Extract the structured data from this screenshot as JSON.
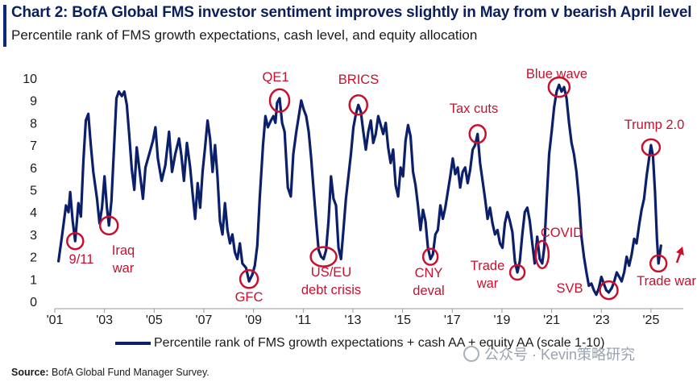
{
  "header": {
    "title": "Chart 2: BofA Global FMS investor sentiment improves slightly in May from v bearish April level",
    "subtitle": "Percentile rank of FMS growth expectations, cash level, and equity allocation"
  },
  "source": {
    "label": "Source:",
    "text": "BofA Global Fund Manager Survey."
  },
  "watermark": "公众号 · Kevin策略研究",
  "colors": {
    "line": "#0b1f6b",
    "annotation": "#c8102e",
    "title": "#0b1f5c"
  },
  "chart_data": {
    "type": "line",
    "title": "Chart 2: BofA Global FMS investor sentiment improves slightly in May from v bearish April level",
    "subtitle": "Percentile rank of FMS growth expectations, cash level, and equity allocation",
    "ylim": [
      0,
      10
    ],
    "yticks": [
      "0",
      "1",
      "2",
      "3",
      "4",
      "5",
      "6",
      "7",
      "8",
      "9",
      "10"
    ],
    "xlim": [
      2001,
      2026.3
    ],
    "xticks": [
      {
        "x": 2001,
        "label": "'01"
      },
      {
        "x": 2003,
        "label": "'03"
      },
      {
        "x": 2005,
        "label": "'05"
      },
      {
        "x": 2007,
        "label": "'07"
      },
      {
        "x": 2009,
        "label": "'09"
      },
      {
        "x": 2011,
        "label": "'11"
      },
      {
        "x": 2013,
        "label": "'13"
      },
      {
        "x": 2015,
        "label": "'15"
      },
      {
        "x": 2017,
        "label": "'17"
      },
      {
        "x": 2019,
        "label": "'19"
      },
      {
        "x": 2021,
        "label": "'21"
      },
      {
        "x": 2023,
        "label": "'23"
      },
      {
        "x": 2025,
        "label": "'25"
      }
    ],
    "grid": false,
    "legend_position": "bottom",
    "series": [
      {
        "name": "Percentile rank of FMS growth expectations + cash AA + equity AA (scale 1-10)",
        "points": [
          [
            2001.15,
            1.8
          ],
          [
            2001.3,
            3.0
          ],
          [
            2001.45,
            4.3
          ],
          [
            2001.55,
            4.0
          ],
          [
            2001.62,
            4.9
          ],
          [
            2001.72,
            3.6
          ],
          [
            2001.82,
            2.7
          ],
          [
            2001.95,
            4.4
          ],
          [
            2002.05,
            3.8
          ],
          [
            2002.15,
            6.3
          ],
          [
            2002.25,
            8.1
          ],
          [
            2002.35,
            8.4
          ],
          [
            2002.45,
            7.0
          ],
          [
            2002.55,
            5.8
          ],
          [
            2002.7,
            4.6
          ],
          [
            2002.8,
            3.5
          ],
          [
            2002.9,
            4.2
          ],
          [
            2003.0,
            5.6
          ],
          [
            2003.1,
            4.2
          ],
          [
            2003.18,
            3.4
          ],
          [
            2003.28,
            4.5
          ],
          [
            2003.38,
            6.8
          ],
          [
            2003.48,
            9.1
          ],
          [
            2003.58,
            9.4
          ],
          [
            2003.7,
            9.2
          ],
          [
            2003.8,
            9.4
          ],
          [
            2003.9,
            8.8
          ],
          [
            2004.0,
            7.4
          ],
          [
            2004.1,
            5.9
          ],
          [
            2004.2,
            5.0
          ],
          [
            2004.3,
            6.9
          ],
          [
            2004.42,
            5.8
          ],
          [
            2004.55,
            4.6
          ],
          [
            2004.65,
            6.0
          ],
          [
            2004.8,
            6.6
          ],
          [
            2004.95,
            7.2
          ],
          [
            2005.05,
            7.8
          ],
          [
            2005.15,
            6.4
          ],
          [
            2005.3,
            5.4
          ],
          [
            2005.45,
            6.1
          ],
          [
            2005.6,
            7.6
          ],
          [
            2005.72,
            5.8
          ],
          [
            2005.85,
            6.6
          ],
          [
            2006.0,
            7.3
          ],
          [
            2006.1,
            6.5
          ],
          [
            2006.2,
            5.4
          ],
          [
            2006.32,
            7.1
          ],
          [
            2006.45,
            6.0
          ],
          [
            2006.55,
            4.8
          ],
          [
            2006.65,
            3.7
          ],
          [
            2006.75,
            5.3
          ],
          [
            2006.85,
            4.2
          ],
          [
            2006.95,
            5.8
          ],
          [
            2007.05,
            6.9
          ],
          [
            2007.15,
            8.1
          ],
          [
            2007.25,
            7.3
          ],
          [
            2007.35,
            5.8
          ],
          [
            2007.45,
            7.0
          ],
          [
            2007.55,
            5.6
          ],
          [
            2007.65,
            3.6
          ],
          [
            2007.75,
            3.0
          ],
          [
            2007.85,
            4.4
          ],
          [
            2007.95,
            3.2
          ],
          [
            2008.05,
            2.6
          ],
          [
            2008.15,
            3.0
          ],
          [
            2008.25,
            2.2
          ],
          [
            2008.35,
            1.9
          ],
          [
            2008.45,
            2.6
          ],
          [
            2008.55,
            1.7
          ],
          [
            2008.7,
            1.5
          ],
          [
            2008.82,
            0.9
          ],
          [
            2008.95,
            1.2
          ],
          [
            2009.05,
            1.6
          ],
          [
            2009.15,
            2.5
          ],
          [
            2009.25,
            4.6
          ],
          [
            2009.38,
            7.0
          ],
          [
            2009.48,
            8.3
          ],
          [
            2009.58,
            7.8
          ],
          [
            2009.7,
            8.1
          ],
          [
            2009.8,
            8.3
          ],
          [
            2009.88,
            8.0
          ],
          [
            2009.95,
            8.9
          ],
          [
            2010.05,
            9.1
          ],
          [
            2010.15,
            8.0
          ],
          [
            2010.25,
            7.6
          ],
          [
            2010.38,
            5.1
          ],
          [
            2010.5,
            4.7
          ],
          [
            2010.6,
            6.6
          ],
          [
            2010.72,
            7.6
          ],
          [
            2010.82,
            8.3
          ],
          [
            2010.92,
            9.0
          ],
          [
            2011.02,
            8.6
          ],
          [
            2011.12,
            8.3
          ],
          [
            2011.22,
            7.6
          ],
          [
            2011.32,
            6.4
          ],
          [
            2011.42,
            5.0
          ],
          [
            2011.52,
            3.6
          ],
          [
            2011.62,
            2.3
          ],
          [
            2011.72,
            2.0
          ],
          [
            2011.82,
            1.9
          ],
          [
            2011.92,
            2.3
          ],
          [
            2012.02,
            3.6
          ],
          [
            2012.12,
            5.6
          ],
          [
            2012.22,
            4.6
          ],
          [
            2012.32,
            4.3
          ],
          [
            2012.42,
            2.4
          ],
          [
            2012.52,
            1.9
          ],
          [
            2012.62,
            3.2
          ],
          [
            2012.72,
            4.6
          ],
          [
            2012.82,
            5.6
          ],
          [
            2012.92,
            6.6
          ],
          [
            2013.02,
            7.8
          ],
          [
            2013.12,
            8.4
          ],
          [
            2013.22,
            8.8
          ],
          [
            2013.32,
            8.5
          ],
          [
            2013.42,
            7.6
          ],
          [
            2013.52,
            6.8
          ],
          [
            2013.62,
            7.6
          ],
          [
            2013.72,
            8.1
          ],
          [
            2013.82,
            7.1
          ],
          [
            2013.92,
            7.5
          ],
          [
            2014.02,
            8.3
          ],
          [
            2014.12,
            7.9
          ],
          [
            2014.22,
            7.5
          ],
          [
            2014.32,
            8.0
          ],
          [
            2014.42,
            6.9
          ],
          [
            2014.52,
            6.2
          ],
          [
            2014.62,
            6.8
          ],
          [
            2014.72,
            5.2
          ],
          [
            2014.82,
            4.7
          ],
          [
            2014.92,
            6.0
          ],
          [
            2015.02,
            5.6
          ],
          [
            2015.12,
            7.2
          ],
          [
            2015.22,
            7.9
          ],
          [
            2015.32,
            7.4
          ],
          [
            2015.42,
            5.8
          ],
          [
            2015.52,
            5.2
          ],
          [
            2015.62,
            4.3
          ],
          [
            2015.72,
            3.2
          ],
          [
            2015.82,
            4.1
          ],
          [
            2015.92,
            3.6
          ],
          [
            2016.02,
            2.4
          ],
          [
            2016.12,
            1.9
          ],
          [
            2016.22,
            2.1
          ],
          [
            2016.32,
            3.0
          ],
          [
            2016.42,
            3.2
          ],
          [
            2016.52,
            4.3
          ],
          [
            2016.62,
            3.7
          ],
          [
            2016.72,
            4.2
          ],
          [
            2016.82,
            4.9
          ],
          [
            2016.92,
            5.6
          ],
          [
            2017.02,
            6.4
          ],
          [
            2017.12,
            5.7
          ],
          [
            2017.22,
            6.0
          ],
          [
            2017.32,
            5.1
          ],
          [
            2017.42,
            5.8
          ],
          [
            2017.52,
            6.0
          ],
          [
            2017.62,
            5.3
          ],
          [
            2017.72,
            5.9
          ],
          [
            2017.82,
            6.8
          ],
          [
            2017.92,
            7.0
          ],
          [
            2018.02,
            7.5
          ],
          [
            2018.12,
            6.2
          ],
          [
            2018.22,
            5.4
          ],
          [
            2018.32,
            4.6
          ],
          [
            2018.42,
            3.7
          ],
          [
            2018.52,
            4.2
          ],
          [
            2018.62,
            3.5
          ],
          [
            2018.72,
            3.0
          ],
          [
            2018.82,
            3.2
          ],
          [
            2018.92,
            2.6
          ],
          [
            2019.02,
            2.4
          ],
          [
            2019.12,
            3.5
          ],
          [
            2019.22,
            4.0
          ],
          [
            2019.32,
            3.6
          ],
          [
            2019.42,
            3.1
          ],
          [
            2019.52,
            1.8
          ],
          [
            2019.62,
            1.3
          ],
          [
            2019.72,
            1.8
          ],
          [
            2019.82,
            3.0
          ],
          [
            2019.92,
            4.0
          ],
          [
            2020.02,
            4.2
          ],
          [
            2020.12,
            3.6
          ],
          [
            2020.22,
            2.6
          ],
          [
            2020.32,
            1.7
          ],
          [
            2020.42,
            2.9
          ],
          [
            2020.52,
            1.9
          ],
          [
            2020.62,
            1.7
          ],
          [
            2020.7,
            2.4
          ],
          [
            2020.8,
            4.5
          ],
          [
            2020.9,
            6.6
          ],
          [
            2021.0,
            7.6
          ],
          [
            2021.1,
            8.7
          ],
          [
            2021.2,
            9.4
          ],
          [
            2021.3,
            9.7
          ],
          [
            2021.4,
            9.4
          ],
          [
            2021.5,
            9.6
          ],
          [
            2021.6,
            9.1
          ],
          [
            2021.7,
            8.0
          ],
          [
            2021.8,
            7.1
          ],
          [
            2021.9,
            6.6
          ],
          [
            2022.0,
            5.8
          ],
          [
            2022.1,
            4.6
          ],
          [
            2022.2,
            2.9
          ],
          [
            2022.3,
            2.0
          ],
          [
            2022.4,
            1.3
          ],
          [
            2022.5,
            0.7
          ],
          [
            2022.6,
            0.8
          ],
          [
            2022.7,
            0.5
          ],
          [
            2022.8,
            0.3
          ],
          [
            2022.9,
            0.6
          ],
          [
            2023.0,
            1.1
          ],
          [
            2023.1,
            0.8
          ],
          [
            2023.2,
            0.5
          ],
          [
            2023.3,
            0.4
          ],
          [
            2023.42,
            0.6
          ],
          [
            2023.52,
            0.9
          ],
          [
            2023.62,
            1.3
          ],
          [
            2023.72,
            1.1
          ],
          [
            2023.82,
            0.9
          ],
          [
            2023.92,
            1.3
          ],
          [
            2024.02,
            2.0
          ],
          [
            2024.12,
            1.6
          ],
          [
            2024.22,
            2.1
          ],
          [
            2024.32,
            2.8
          ],
          [
            2024.42,
            2.6
          ],
          [
            2024.52,
            3.4
          ],
          [
            2024.62,
            4.1
          ],
          [
            2024.72,
            4.6
          ],
          [
            2024.82,
            5.6
          ],
          [
            2024.92,
            6.4
          ],
          [
            2025.0,
            7.0
          ],
          [
            2025.08,
            6.5
          ],
          [
            2025.16,
            4.9
          ],
          [
            2025.24,
            2.8
          ],
          [
            2025.3,
            1.7
          ],
          [
            2025.4,
            2.5
          ]
        ]
      }
    ],
    "annotations": [
      {
        "label": "9/11",
        "x": 2001.82,
        "y": 2.7
      },
      {
        "label": "Iraq\nwar",
        "x": 2003.18,
        "y": 3.4
      },
      {
        "label": "GFC",
        "x": 2008.82,
        "y": 1.0
      },
      {
        "label": "QE1",
        "x": 2010.05,
        "y": 9.0
      },
      {
        "label": "US/EU\ndebt crisis",
        "x": 2011.82,
        "y": 2.0
      },
      {
        "label": "BRICS",
        "x": 2013.22,
        "y": 8.8
      },
      {
        "label": "CNY\ndeval",
        "x": 2016.12,
        "y": 2.0
      },
      {
        "label": "Tax cuts",
        "x": 2018.02,
        "y": 7.5
      },
      {
        "label": "Trade\nwar",
        "x": 2019.62,
        "y": 1.3
      },
      {
        "label": "COVID",
        "x": 2020.62,
        "y": 2.1
      },
      {
        "label": "Blue wave",
        "x": 2021.3,
        "y": 9.6
      },
      {
        "label": "SVB",
        "x": 2023.3,
        "y": 0.5
      },
      {
        "label": "Trump 2.0",
        "x": 2025.0,
        "y": 6.9
      },
      {
        "label": "Trade war",
        "x": 2025.3,
        "y": 1.7
      }
    ]
  }
}
